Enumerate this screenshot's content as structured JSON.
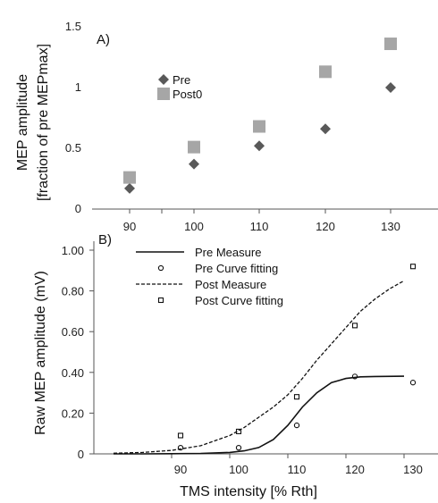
{
  "chart_data": [
    {
      "type": "scatter",
      "panel_label": "A)",
      "ylabel": "MEP amplitude",
      "ylabel2": "[fraction of pre MEPmax]",
      "xlabel": "",
      "x": [
        90,
        100,
        110,
        120,
        130
      ],
      "xticklabels": [
        "90",
        "100",
        "110",
        "120",
        "130"
      ],
      "yticklabels": [
        "0",
        "0.5",
        "1",
        "1.5"
      ],
      "ylim": [
        0,
        1.5
      ],
      "grid": false,
      "legend_position": "upper-left",
      "series": [
        {
          "name": "Pre",
          "marker": "diamond",
          "color": "#595959",
          "values": [
            0.17,
            0.37,
            0.52,
            0.66,
            1.0
          ]
        },
        {
          "name": "Post0",
          "marker": "square",
          "color": "#a6a6a6",
          "values": [
            0.26,
            0.51,
            0.68,
            1.13,
            1.36
          ]
        }
      ]
    },
    {
      "type": "line",
      "panel_label": "B)",
      "ylabel": "Raw MEP amplitude (mV)",
      "xlabel": "TMS intensity [% Rth]",
      "xticklabels": [
        "90",
        "100",
        "110",
        "120",
        "130"
      ],
      "yticklabels": [
        "0",
        "0.20",
        "0.40",
        "0.60",
        "0.80",
        "1.00"
      ],
      "ylim": [
        0,
        1.0
      ],
      "grid": false,
      "legend_position": "top",
      "series": [
        {
          "name": "Pre Measure",
          "style": "solid",
          "x": [
            80,
            85,
            90,
            95,
            100,
            102.5,
            105,
            107.5,
            110,
            112.5,
            115,
            117.5,
            120,
            122.5,
            125,
            130
          ],
          "values": [
            0.0,
            0.0,
            0.001,
            0.002,
            0.007,
            0.015,
            0.031,
            0.07,
            0.14,
            0.23,
            0.3,
            0.35,
            0.37,
            0.378,
            0.38,
            0.381
          ]
        },
        {
          "name": "Pre Curve fitting",
          "marker": "circle",
          "x": [
            90,
            100,
            110,
            120,
            130
          ],
          "values": [
            0.03,
            0.03,
            0.14,
            0.38,
            0.35
          ]
        },
        {
          "name": "Post Measure",
          "style": "dashed",
          "x": [
            80,
            85,
            90,
            95,
            100,
            102.5,
            105,
            107.5,
            110,
            112.5,
            115,
            117.5,
            120,
            122.5,
            125,
            127.5,
            130
          ],
          "values": [
            0.003,
            0.007,
            0.017,
            0.04,
            0.09,
            0.13,
            0.18,
            0.23,
            0.29,
            0.37,
            0.46,
            0.54,
            0.62,
            0.7,
            0.76,
            0.81,
            0.85
          ]
        },
        {
          "name": "Post Curve fitting",
          "marker": "square",
          "x": [
            90,
            100,
            110,
            120,
            130
          ],
          "values": [
            0.09,
            0.11,
            0.28,
            0.63,
            0.92
          ]
        }
      ]
    }
  ]
}
